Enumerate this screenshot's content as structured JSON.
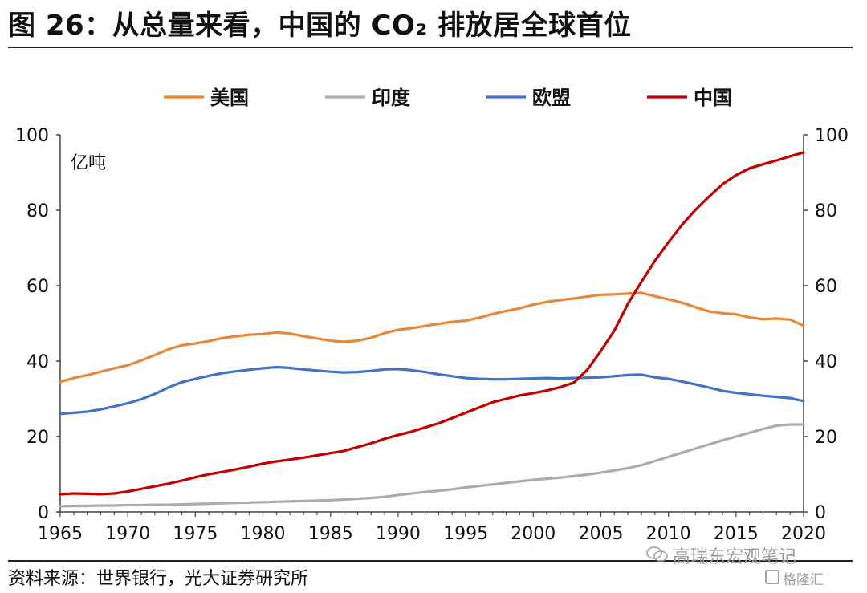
{
  "header": {
    "title": "图 26：从总量来看，中国的 CO₂ 排放居全球首位"
  },
  "footer": {
    "source": "资料来源：世界银行，光大证券研究所",
    "watermark": "高瑞东宏观笔记",
    "watermark2": "格隆汇"
  },
  "colors": {
    "usa": "#E8873A",
    "india": "#ABABAB",
    "eu": "#4472C4",
    "china": "#C00000"
  },
  "chart_data": {
    "type": "line",
    "title": "",
    "ylabel": "亿吨",
    "xlim": [
      1965,
      2020
    ],
    "ylim": [
      0,
      100
    ],
    "x_ticks": [
      "1965",
      "1970",
      "1975",
      "1980",
      "1985",
      "1990",
      "1995",
      "2000",
      "2005",
      "2010",
      "2015",
      "2020"
    ],
    "y_ticks": [
      "0",
      "20",
      "40",
      "60",
      "80",
      "100"
    ],
    "legend": [
      "美国",
      "印度",
      "欧盟",
      "中国"
    ],
    "legend_position": "top",
    "x": [
      1965,
      1966,
      1967,
      1968,
      1969,
      1970,
      1971,
      1972,
      1973,
      1974,
      1975,
      1976,
      1977,
      1978,
      1979,
      1980,
      1981,
      1982,
      1983,
      1984,
      1985,
      1986,
      1987,
      1988,
      1989,
      1990,
      1991,
      1992,
      1993,
      1994,
      1995,
      1996,
      1997,
      1998,
      1999,
      2000,
      2001,
      2002,
      2003,
      2004,
      2005,
      2006,
      2007,
      2008,
      2009,
      2010,
      2011,
      2012,
      2013,
      2014,
      2015,
      2016,
      2017,
      2018,
      2019,
      2020
    ],
    "series": [
      {
        "name": "美国",
        "key": "usa",
        "values": [
          34.5,
          35.5,
          36.3,
          37.2,
          38.1,
          38.9,
          40.2,
          41.6,
          43.1,
          44.2,
          44.7,
          45.3,
          46.1,
          46.6,
          47.0,
          47.2,
          47.6,
          47.3,
          46.6,
          46.0,
          45.4,
          45.1,
          45.4,
          46.2,
          47.4,
          48.3,
          48.7,
          49.3,
          49.9,
          50.4,
          50.7,
          51.5,
          52.5,
          53.3,
          54.0,
          55.0,
          55.7,
          56.2,
          56.6,
          57.1,
          57.6,
          57.7,
          57.9,
          58.1,
          57.2,
          56.4,
          55.5,
          54.3,
          53.2,
          52.7,
          52.4,
          51.6,
          51.1,
          51.3,
          51.0,
          49.4
        ]
      },
      {
        "name": "印度",
        "key": "india",
        "values": [
          1.5,
          1.6,
          1.6,
          1.7,
          1.7,
          1.8,
          1.8,
          1.9,
          1.9,
          2.0,
          2.1,
          2.2,
          2.3,
          2.4,
          2.5,
          2.6,
          2.7,
          2.8,
          2.9,
          3.0,
          3.1,
          3.3,
          3.5,
          3.7,
          4.0,
          4.5,
          4.9,
          5.3,
          5.6,
          6.0,
          6.5,
          6.9,
          7.3,
          7.7,
          8.1,
          8.5,
          8.8,
          9.1,
          9.5,
          9.9,
          10.4,
          11.0,
          11.6,
          12.4,
          13.5,
          14.6,
          15.7,
          16.8,
          17.9,
          19.0,
          20.0,
          21.0,
          22.0,
          22.9,
          23.2,
          23.2
        ]
      },
      {
        "name": "欧盟",
        "key": "eu",
        "values": [
          26.0,
          26.3,
          26.6,
          27.2,
          28.0,
          28.8,
          29.9,
          31.3,
          33.0,
          34.4,
          35.3,
          36.1,
          36.8,
          37.3,
          37.7,
          38.1,
          38.4,
          38.2,
          37.8,
          37.5,
          37.2,
          37.0,
          37.1,
          37.4,
          37.8,
          37.9,
          37.6,
          37.1,
          36.5,
          36.0,
          35.5,
          35.3,
          35.2,
          35.2,
          35.3,
          35.4,
          35.5,
          35.4,
          35.5,
          35.6,
          35.7,
          36.0,
          36.3,
          36.4,
          35.7,
          35.3,
          34.6,
          33.8,
          33.0,
          32.1,
          31.6,
          31.2,
          30.8,
          30.5,
          30.2,
          29.4
        ]
      },
      {
        "name": "中国",
        "key": "china",
        "values": [
          4.7,
          4.9,
          4.8,
          4.7,
          4.9,
          5.4,
          6.1,
          6.8,
          7.5,
          8.3,
          9.2,
          10.0,
          10.6,
          11.3,
          12.0,
          12.8,
          13.4,
          13.9,
          14.4,
          15.0,
          15.6,
          16.2,
          17.2,
          18.2,
          19.4,
          20.4,
          21.3,
          22.4,
          23.5,
          24.9,
          26.3,
          27.7,
          29.1,
          30.0,
          30.9,
          31.5,
          32.2,
          33.1,
          34.3,
          37.7,
          42.7,
          48.1,
          55.2,
          61.0,
          66.6,
          71.5,
          76.1,
          80.1,
          83.6,
          86.9,
          89.3,
          91.1,
          92.2,
          93.2,
          94.3,
          95.3
        ]
      }
    ]
  }
}
